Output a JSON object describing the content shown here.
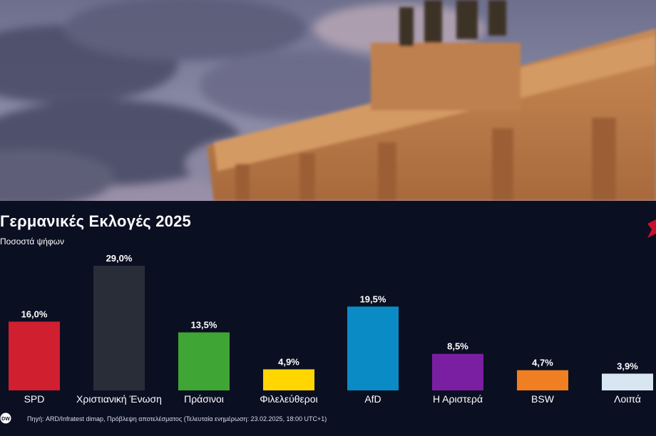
{
  "header": {
    "title": "Γερμανικές Εκλογές 2025",
    "subtitle": "Ποσοστά ψήφων"
  },
  "footer": {
    "source": "Πηγή: ARD/Infratest dimap, Πρόβλεψη αποτελέσματος (Τελευταία ενημέρωση: 23.02.2025, 18:00 UTC+1)"
  },
  "colors": {
    "background": "#0b0f22",
    "accent": "#c8102e"
  },
  "icons": {
    "logo": "dw-logo-icon",
    "accent": "red-corner-mark-icon"
  },
  "chart_data": {
    "type": "bar",
    "title": "Γερμανικές Εκλογές 2025",
    "subtitle": "Ποσοστά ψήφων",
    "categories": [
      "SPD",
      "Χριστιανική Ένωση",
      "Πράσινοι",
      "Φιλελεύθεροι",
      "AfD",
      "Η Αριστερά",
      "BSW",
      "Λοιπά"
    ],
    "values": [
      16.0,
      29.0,
      13.5,
      4.9,
      19.5,
      8.5,
      4.7,
      3.9
    ],
    "value_labels": [
      "16,0%",
      "29,0%",
      "13,5%",
      "4,9%",
      "19,5%",
      "8,5%",
      "4,7%",
      "3,9%"
    ],
    "bar_colors": [
      "#d01f2e",
      "#292d38",
      "#3fa535",
      "#ffd600",
      "#0a8bc6",
      "#7a1fa2",
      "#f07f22",
      "#d8e6f2"
    ],
    "ylim": [
      0,
      29
    ],
    "grid": false,
    "legend": "none"
  }
}
